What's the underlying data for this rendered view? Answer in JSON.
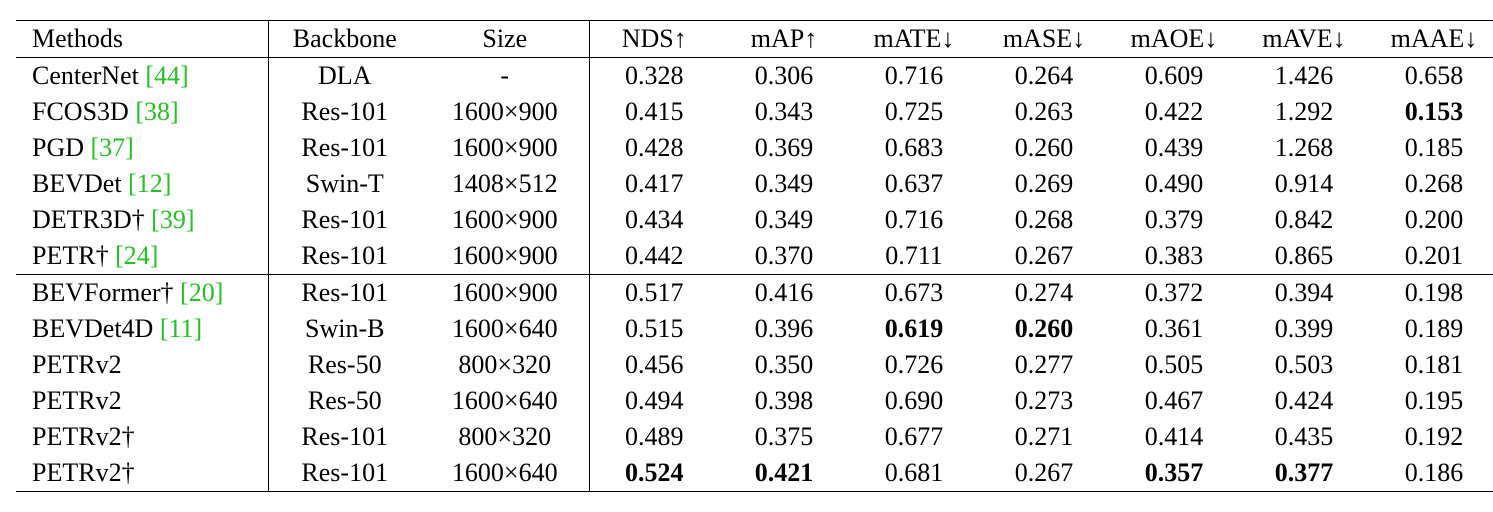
{
  "headers": {
    "method": "Methods",
    "backbone": "Backbone",
    "size": "Size",
    "nds": "NDS↑",
    "map": "mAP↑",
    "mate": "mATE↓",
    "mase": "mASE↓",
    "maoe": "mAOE↓",
    "mave": "mAVE↓",
    "maae": "mAAE↓"
  },
  "rows": [
    {
      "name": "CenterNet ",
      "cite": "[44]",
      "backbone": "DLA",
      "size": "-",
      "nds": "0.328",
      "map": "0.306",
      "mate": "0.716",
      "mase": "0.264",
      "maoe": "0.609",
      "mave": "1.426",
      "maae": "0.658"
    },
    {
      "name": "FCOS3D ",
      "cite": "[38]",
      "backbone": "Res-101",
      "size": "1600×900",
      "nds": "0.415",
      "map": "0.343",
      "mate": "0.725",
      "mase": "0.263",
      "maoe": "0.422",
      "mave": "1.292",
      "maae": "0.153"
    },
    {
      "name": "PGD ",
      "cite": "[37]",
      "backbone": "Res-101",
      "size": "1600×900",
      "nds": "0.428",
      "map": "0.369",
      "mate": "0.683",
      "mase": "0.260",
      "maoe": "0.439",
      "mave": "1.268",
      "maae": "0.185"
    },
    {
      "name": "BEVDet ",
      "cite": "[12]",
      "backbone": "Swin-T",
      "size": "1408×512",
      "nds": "0.417",
      "map": "0.349",
      "mate": "0.637",
      "mase": "0.269",
      "maoe": "0.490",
      "mave": "0.914",
      "maae": "0.268"
    },
    {
      "name": "DETR3D† ",
      "cite": "[39]",
      "backbone": "Res-101",
      "size": "1600×900",
      "nds": "0.434",
      "map": "0.349",
      "mate": "0.716",
      "mase": "0.268",
      "maoe": "0.379",
      "mave": "0.842",
      "maae": "0.200"
    },
    {
      "name": "PETR† ",
      "cite": "[24]",
      "backbone": "Res-101",
      "size": "1600×900",
      "nds": "0.442",
      "map": "0.370",
      "mate": "0.711",
      "mase": "0.267",
      "maoe": "0.383",
      "mave": "0.865",
      "maae": "0.201"
    },
    {
      "name": "BEVFormer† ",
      "cite": "[20]",
      "backbone": "Res-101",
      "size": "1600×900",
      "nds": "0.517",
      "map": "0.416",
      "mate": "0.673",
      "mase": "0.274",
      "maoe": "0.372",
      "mave": "0.394",
      "maae": "0.198"
    },
    {
      "name": "BEVDet4D ",
      "cite": "[11]",
      "backbone": "Swin-B",
      "size": "1600×640",
      "nds": "0.515",
      "map": "0.396",
      "mate": "0.619",
      "mase": "0.260",
      "maoe": "0.361",
      "mave": "0.399",
      "maae": "0.189"
    },
    {
      "name": "PETRv2",
      "cite": "",
      "backbone": "Res-50",
      "size": "800×320",
      "nds": "0.456",
      "map": "0.350",
      "mate": "0.726",
      "mase": "0.277",
      "maoe": "0.505",
      "mave": "0.503",
      "maae": "0.181"
    },
    {
      "name": "PETRv2",
      "cite": "",
      "backbone": "Res-50",
      "size": "1600×640",
      "nds": "0.494",
      "map": "0.398",
      "mate": "0.690",
      "mase": "0.273",
      "maoe": "0.467",
      "mave": "0.424",
      "maae": "0.195"
    },
    {
      "name": "PETRv2†",
      "cite": "",
      "backbone": "Res-101",
      "size": "800×320",
      "nds": "0.489",
      "map": "0.375",
      "mate": "0.677",
      "mase": "0.271",
      "maoe": "0.414",
      "mave": "0.435",
      "maae": "0.192"
    },
    {
      "name": "PETRv2†",
      "cite": "",
      "backbone": "Res-101",
      "size": "1600×640",
      "nds": "0.524",
      "map": "0.421",
      "mate": "0.681",
      "mase": "0.267",
      "maoe": "0.357",
      "mave": "0.377",
      "maae": "0.186"
    }
  ],
  "colors": {
    "citation": "#22c322",
    "text": "#000000"
  }
}
